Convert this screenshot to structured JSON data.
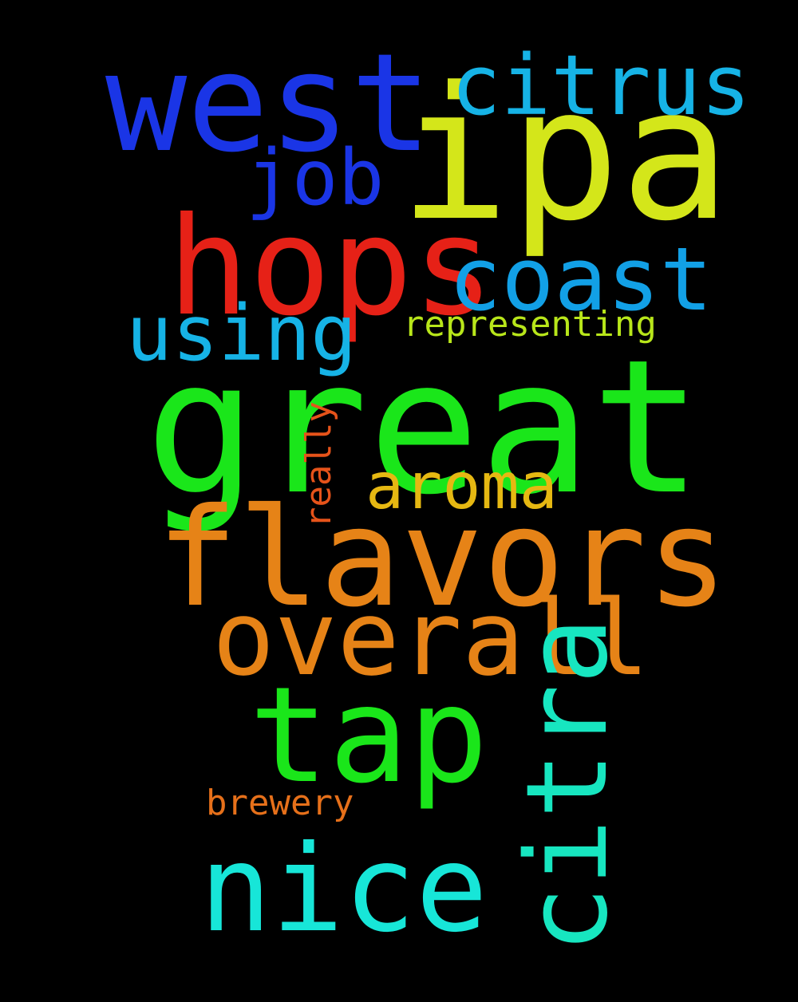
{
  "cloud": {
    "background": "#000000",
    "words": [
      {
        "id": "ipa",
        "text": "ipa",
        "color": "#d4e61a"
      },
      {
        "id": "west",
        "text": "west",
        "color": "#1a35e6"
      },
      {
        "id": "citrus",
        "text": "citrus",
        "color": "#16b3e6"
      },
      {
        "id": "job",
        "text": "job",
        "color": "#1a35e6"
      },
      {
        "id": "hops",
        "text": "hops",
        "color": "#e62117"
      },
      {
        "id": "coast",
        "text": "coast",
        "color": "#12a0e6"
      },
      {
        "id": "using",
        "text": "using",
        "color": "#16b3e6"
      },
      {
        "id": "representing",
        "text": "representing",
        "color": "#b8e61a"
      },
      {
        "id": "great",
        "text": "great",
        "color": "#1ae61a"
      },
      {
        "id": "really",
        "text": "really",
        "color": "#e6531a"
      },
      {
        "id": "aroma",
        "text": "aroma",
        "color": "#e6b812"
      },
      {
        "id": "flavors",
        "text": "flavors",
        "color": "#e68317"
      },
      {
        "id": "overall",
        "text": "overall",
        "color": "#e68317"
      },
      {
        "id": "tap",
        "text": "tap",
        "color": "#1ae61a"
      },
      {
        "id": "citra",
        "text": "citra",
        "color": "#17e6c0"
      },
      {
        "id": "brewery",
        "text": "brewery",
        "color": "#e6701a"
      },
      {
        "id": "nice",
        "text": "nice",
        "color": "#17e6d8"
      }
    ]
  }
}
